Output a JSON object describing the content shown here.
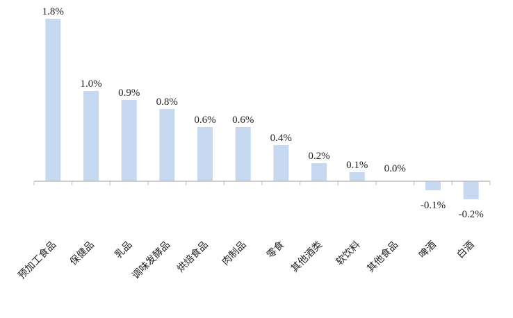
{
  "chart_data": {
    "type": "bar",
    "categories": [
      "预加工食品",
      "保健品",
      "乳品",
      "调味发酵品",
      "烘焙食品",
      "肉制品",
      "零食",
      "其他酒类",
      "软饮料",
      "其他食品",
      "啤酒",
      "白酒"
    ],
    "values": [
      1.8,
      1.0,
      0.9,
      0.8,
      0.6,
      0.6,
      0.4,
      0.2,
      0.1,
      0.0,
      -0.1,
      -0.2
    ],
    "data_labels": [
      "1.8%",
      "1.0%",
      "0.9%",
      "0.8%",
      "0.6%",
      "0.6%",
      "0.4%",
      "0.2%",
      "0.1%",
      "0.0%",
      "-0.1%",
      "-0.2%"
    ],
    "title": "",
    "xlabel": "",
    "ylabel": "",
    "ylim": [
      -0.2,
      1.8
    ],
    "grid": false,
    "legend": "none",
    "colors": {
      "bar": "#c6d9f1",
      "axis": "#bfbfbf",
      "text": "#222222"
    }
  }
}
